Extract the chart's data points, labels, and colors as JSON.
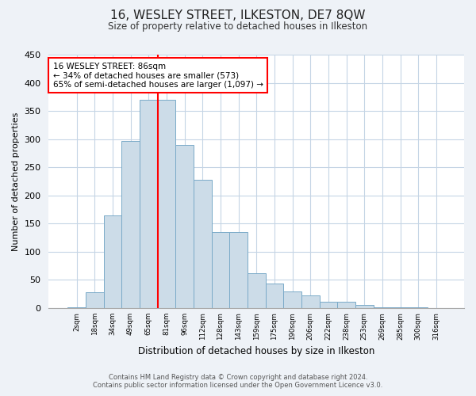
{
  "title": "16, WESLEY STREET, ILKESTON, DE7 8QW",
  "subtitle": "Size of property relative to detached houses in Ilkeston",
  "xlabel": "Distribution of detached houses by size in Ilkeston",
  "ylabel": "Number of detached properties",
  "bar_labels": [
    "2sqm",
    "18sqm",
    "34sqm",
    "49sqm",
    "65sqm",
    "81sqm",
    "96sqm",
    "112sqm",
    "128sqm",
    "143sqm",
    "159sqm",
    "175sqm",
    "190sqm",
    "206sqm",
    "222sqm",
    "238sqm",
    "253sqm",
    "269sqm",
    "285sqm",
    "300sqm",
    "316sqm"
  ],
  "bar_values": [
    1,
    28,
    165,
    297,
    370,
    370,
    290,
    228,
    135,
    135,
    62,
    43,
    30,
    22,
    11,
    11,
    5,
    2,
    1,
    1,
    0
  ],
  "bar_color": "#ccdce8",
  "bar_edge_color": "#7aaac8",
  "vline_color": "red",
  "vline_index": 5,
  "ylim": [
    0,
    450
  ],
  "yticks": [
    0,
    50,
    100,
    150,
    200,
    250,
    300,
    350,
    400,
    450
  ],
  "annotation_title": "16 WESLEY STREET: 86sqm",
  "annotation_line1": "← 34% of detached houses are smaller (573)",
  "annotation_line2": "65% of semi-detached houses are larger (1,097) →",
  "annotation_box_color": "white",
  "annotation_box_edge_color": "red",
  "footer_line1": "Contains HM Land Registry data © Crown copyright and database right 2024.",
  "footer_line2": "Contains public sector information licensed under the Open Government Licence v3.0.",
  "bg_color": "#eef2f7",
  "plot_bg_color": "white",
  "grid_color": "#c5d5e5"
}
